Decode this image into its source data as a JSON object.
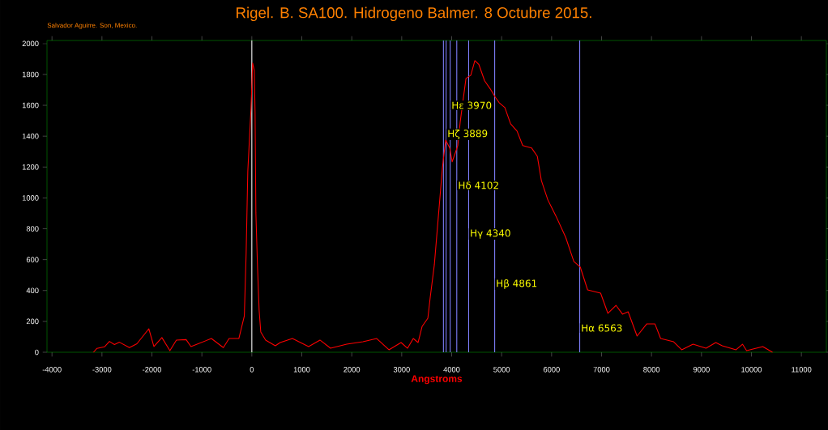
{
  "chart_data": {
    "type": "line",
    "title": "Rigel. B. SA100.  Hidrogeno Balmer. 8 Octubre 2015.",
    "xlabel": "Angstroms",
    "x": [
      -3170,
      -3100,
      -2950,
      -2850,
      -2750,
      -2650,
      -2450,
      -2300,
      -2062,
      -1960,
      -1800,
      -1640,
      -1510,
      -1315,
      -1218,
      -810,
      -570,
      -455,
      -260,
      -150,
      -114,
      -81,
      -16,
      16,
      49,
      65,
      81,
      114,
      146,
      179,
      276,
      470,
      568,
      812,
      1136,
      1364,
      1575,
      1899,
      2224,
      2500,
      2744,
      2987,
      3117,
      3231,
      3328,
      3409,
      3523,
      3571,
      3653,
      3734,
      3815,
      3880,
      3961,
      4010,
      4123,
      4172,
      4286,
      4383,
      4464,
      4545,
      4659,
      4773,
      4870,
      4951,
      5065,
      5179,
      5308,
      5422,
      5601,
      5714,
      5795,
      5925,
      6088,
      6282,
      6445,
      6575,
      6721,
      6981,
      7127,
      7289,
      7419,
      7532,
      7711,
      7906,
      8068,
      8182,
      8442,
      8604,
      8831,
      9091,
      9286,
      9416,
      9692,
      9821,
      9903,
      10227,
      10422
    ],
    "series": [
      {
        "color": "#ff0000",
        "values": [
          0,
          25,
          35,
          70,
          50,
          65,
          30,
          55,
          152,
          37,
          95,
          10,
          79,
          82,
          37,
          89,
          30,
          89,
          89,
          236,
          640,
          1170,
          1585,
          1874,
          1827,
          1549,
          903,
          551,
          273,
          131,
          79,
          42,
          63,
          89,
          37,
          79,
          26,
          52,
          68,
          89,
          16,
          63,
          26,
          89,
          63,
          168,
          220,
          357,
          567,
          882,
          1197,
          1375,
          1323,
          1234,
          1339,
          1496,
          1774,
          1795,
          1890,
          1864,
          1759,
          1706,
          1654,
          1617,
          1585,
          1480,
          1433,
          1339,
          1323,
          1270,
          1113,
          987,
          882,
          745,
          588,
          551,
          404,
          383,
          252,
          304,
          247,
          262,
          105,
          184,
          184,
          89,
          68,
          16,
          52,
          26,
          63,
          42,
          16,
          52,
          10,
          37,
          0
        ]
      }
    ],
    "xlim": [
      -4100,
      11500
    ],
    "ylim": [
      0,
      2020
    ],
    "xticks": [
      -4000,
      -3000,
      -2000,
      -1000,
      0,
      1000,
      2000,
      3000,
      4000,
      5000,
      6000,
      7000,
      8000,
      9000,
      10000,
      11000
    ],
    "yticks": [
      0,
      200,
      400,
      600,
      800,
      1000,
      1200,
      1400,
      1600,
      1800,
      2000
    ],
    "ref_lines": [
      {
        "axis": "x",
        "value": 0,
        "color": "#ffffff"
      },
      {
        "axis": "x",
        "value": 3835,
        "color": "#8080ff"
      },
      {
        "axis": "x",
        "value": 3889,
        "color": "#8080ff"
      },
      {
        "axis": "x",
        "value": 3970,
        "color": "#8080ff"
      },
      {
        "axis": "x",
        "value": 4102,
        "color": "#8080ff"
      },
      {
        "axis": "x",
        "value": 4340,
        "color": "#8080ff"
      },
      {
        "axis": "x",
        "value": 4861,
        "color": "#8080ff"
      },
      {
        "axis": "x",
        "value": 6563,
        "color": "#8080ff"
      }
    ],
    "annotations": [
      "Salvador Aguirre. Son, Mexico.",
      {
        "text": "Hε 3970",
        "x": 3970,
        "y": 1600
      },
      {
        "text": "Hζ 3889",
        "x": 3889,
        "y": 1412
      },
      {
        "text": "Hδ 4102",
        "x": 4102,
        "y": 1081
      },
      {
        "text": "Hγ 4340",
        "x": 4340,
        "y": 766
      },
      {
        "text": "Hβ 4861",
        "x": 4861,
        "y": 441
      },
      {
        "text": "Hα 6563",
        "x": 6563,
        "y": 157
      }
    ],
    "grid": false,
    "marker": "none",
    "line_style": "solid"
  }
}
